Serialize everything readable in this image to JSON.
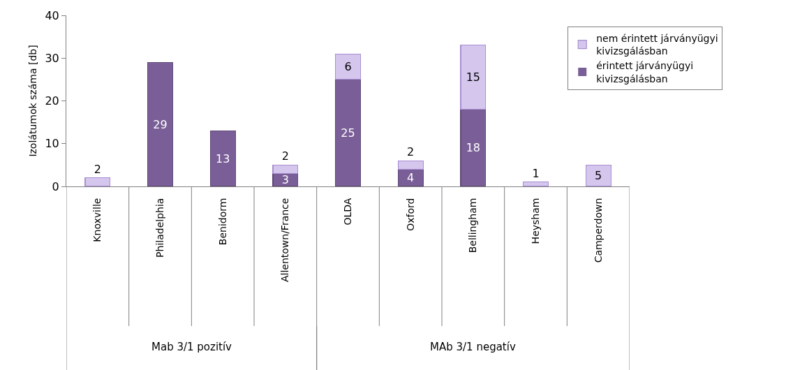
{
  "chart_data": {
    "type": "bar",
    "stacked": true,
    "ylabel": "Izolátumok száma [db]",
    "categories": [
      "Knoxville",
      "Philadelphia",
      "Benidorm",
      "Allentown/France",
      "OLDA",
      "Oxford",
      "Bellingham",
      "Heysham",
      "Camperdown"
    ],
    "series": [
      {
        "name": "érintett járványügyi kivizsgálásban",
        "color": "#7a5e97",
        "values": [
          0,
          29,
          13,
          3,
          25,
          4,
          18,
          0,
          0
        ],
        "value_labels": [
          null,
          "29",
          "13",
          "3",
          "25",
          "4",
          "18",
          null,
          null
        ]
      },
      {
        "name": "nem érintett járványügyi kivizsgálásban",
        "color": "#d5c6ee",
        "values": [
          2,
          0,
          0,
          2,
          6,
          2,
          15,
          1,
          5
        ],
        "value_labels": [
          "2",
          null,
          null,
          "2",
          "6",
          "2",
          "15",
          "1",
          "5"
        ]
      }
    ],
    "ylim": [
      0,
      40
    ],
    "yticks": [
      0,
      10,
      20,
      30,
      40
    ],
    "legend": "right",
    "annotations": [
      "Mab 3/1 pozitív",
      "MAb 3/1 negatív"
    ]
  }
}
